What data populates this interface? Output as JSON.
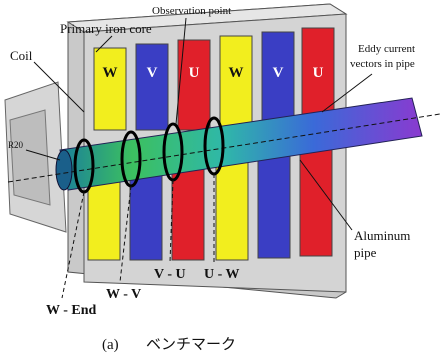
{
  "labels": {
    "primary_iron_core": "Primary iron core",
    "observation_point": "Observation point",
    "coil": "Coil",
    "eddy_current": [
      "Eddy current",
      "vectors in pipe"
    ],
    "r20": "R20",
    "aluminum_pipe": [
      "Aluminum",
      "pipe"
    ]
  },
  "coils": [
    "W",
    "V",
    "U",
    "W",
    "V",
    "U"
  ],
  "positions": [
    "W - End",
    "W - V",
    "V - U",
    "U - W"
  ],
  "caption": {
    "label": "(a)",
    "text": "ベンチマーク"
  }
}
